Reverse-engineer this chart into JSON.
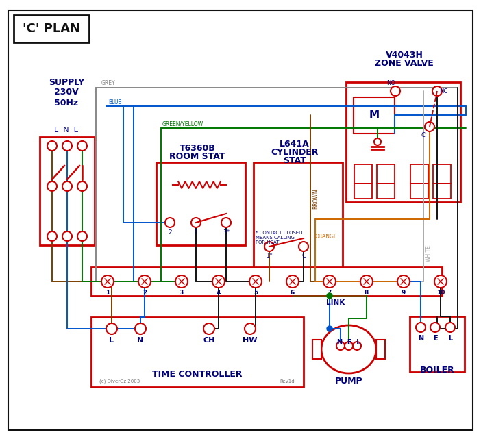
{
  "bg": "#ffffff",
  "red": "#cc0000",
  "blue": "#0055cc",
  "green": "#007700",
  "brown": "#7B3F00",
  "grey": "#888888",
  "orange": "#CC6600",
  "black": "#111111",
  "dkblue": "#000077",
  "white_wire": "#aaaaaa",
  "title": "'C' PLAN",
  "supply_label": "SUPPLY\n230V\n50Hz",
  "lne": "L  N  E",
  "zone_title1": "V4043H",
  "zone_title2": "ZONE VALVE",
  "room_title1": "T6360B",
  "room_title2": "ROOM STAT",
  "cyl_title1": "L641A",
  "cyl_title2": "CYLINDER",
  "cyl_title3": "STAT",
  "tc_title": "TIME CONTROLLER",
  "pump_title": "PUMP",
  "boiler_title": "BOILER",
  "link": "LINK",
  "footnote_l": "(c) DiverGz 2003",
  "footnote_r": "Rev1d",
  "contact_note": "* CONTACT CLOSED\nMEANS CALLING\nFOR HEAT",
  "grey_label": "GREY",
  "blue_label": "BLUE",
  "gy_label": "GREEN/YELLOW",
  "brown_label": "BROWN",
  "white_label": "WHITE",
  "orange_label": "ORANGE"
}
